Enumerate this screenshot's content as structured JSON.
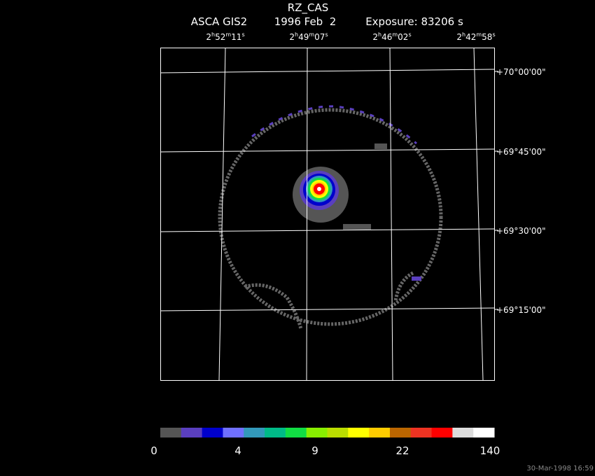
{
  "header": {
    "title": "RZ_CAS",
    "instrument": "ASCA GIS2",
    "date": "1996 Feb  2",
    "exposure": "Exposure: 83206 s"
  },
  "ra_labels": [
    [
      "2",
      "h",
      "52",
      "m",
      "11",
      "s"
    ],
    [
      "2",
      "h",
      "49",
      "m",
      "07",
      "s"
    ],
    [
      "2",
      "h",
      "46",
      "m",
      "02",
      "s"
    ],
    [
      "2",
      "h",
      "42",
      "m",
      "58",
      "s"
    ]
  ],
  "dec_labels": [
    "+70°00'00\"",
    "+69°45'00\"",
    "+69°30'00\"",
    "+69°15'00\""
  ],
  "colorbar": {
    "colors": [
      "#555555",
      "#5a3fbf",
      "#0000cc",
      "#7070ff",
      "#3399bb",
      "#00bb88",
      "#11dd44",
      "#88ee00",
      "#bbdd00",
      "#ffff00",
      "#ffcc00",
      "#bb6600",
      "#ee3322",
      "#ff0000",
      "#dddddd",
      "#ffffff"
    ],
    "labels": [
      "0",
      "4",
      "9",
      "22",
      "140"
    ]
  },
  "timestamp": "30-Mar-1998 16:59"
}
